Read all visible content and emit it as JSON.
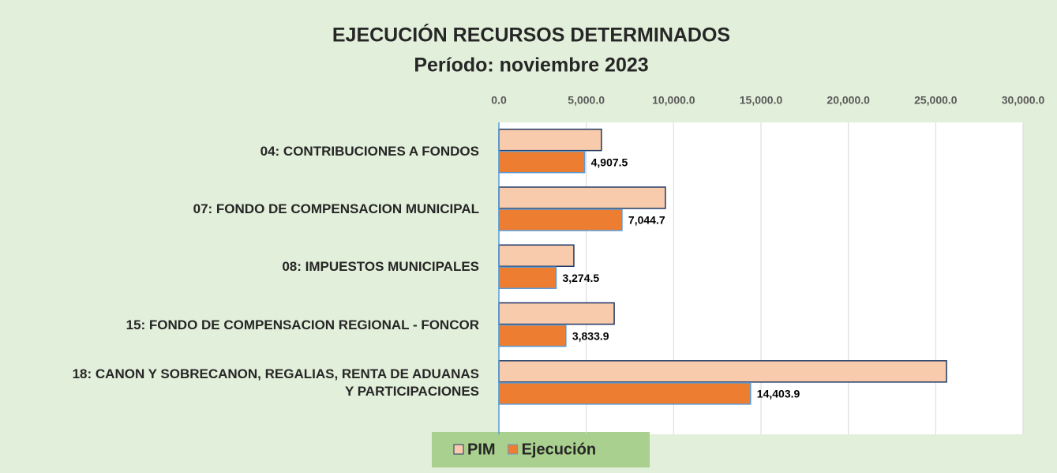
{
  "chart_data": {
    "type": "barh",
    "title": "EJECUCIÓN RECURSOS DETERMINADOS",
    "subtitle": "Período: noviembre 2023",
    "categories": [
      "04: CONTRIBUCIONES A FONDOS",
      "07: FONDO DE COMPENSACION MUNICIPAL",
      "08: IMPUESTOS MUNICIPALES",
      "15: FONDO DE COMPENSACION REGIONAL - FONCOR",
      "18: CANON Y SOBRECANON, REGALIAS, RENTA DE ADUANAS Y PARTICIPACIONES"
    ],
    "series": [
      {
        "name": "PIM",
        "color": "#f8cbad",
        "values": [
          5870,
          9530,
          4290,
          6600,
          25620
        ]
      },
      {
        "name": "Ejecución",
        "color": "#ed7d31",
        "values": [
          4907.5,
          7044.7,
          3274.5,
          3833.9,
          14403.9
        ],
        "value_labels": [
          "4,907.5",
          "7,044.7",
          "3,274.5",
          "3,833.9",
          "14,403.9"
        ]
      }
    ],
    "xlim": [
      0,
      30000
    ],
    "xticks": [
      {
        "value": 0,
        "label": "0.0"
      },
      {
        "value": 5000,
        "label": "5,000.0"
      },
      {
        "value": 10000,
        "label": "10,000.0"
      },
      {
        "value": 15000,
        "label": "15,000.0"
      },
      {
        "value": 20000,
        "label": "20,000.0"
      },
      {
        "value": 25000,
        "label": "25,000.0"
      },
      {
        "value": 30000,
        "label": "30,000.0"
      }
    ],
    "grid": true,
    "legend": "bottom"
  }
}
